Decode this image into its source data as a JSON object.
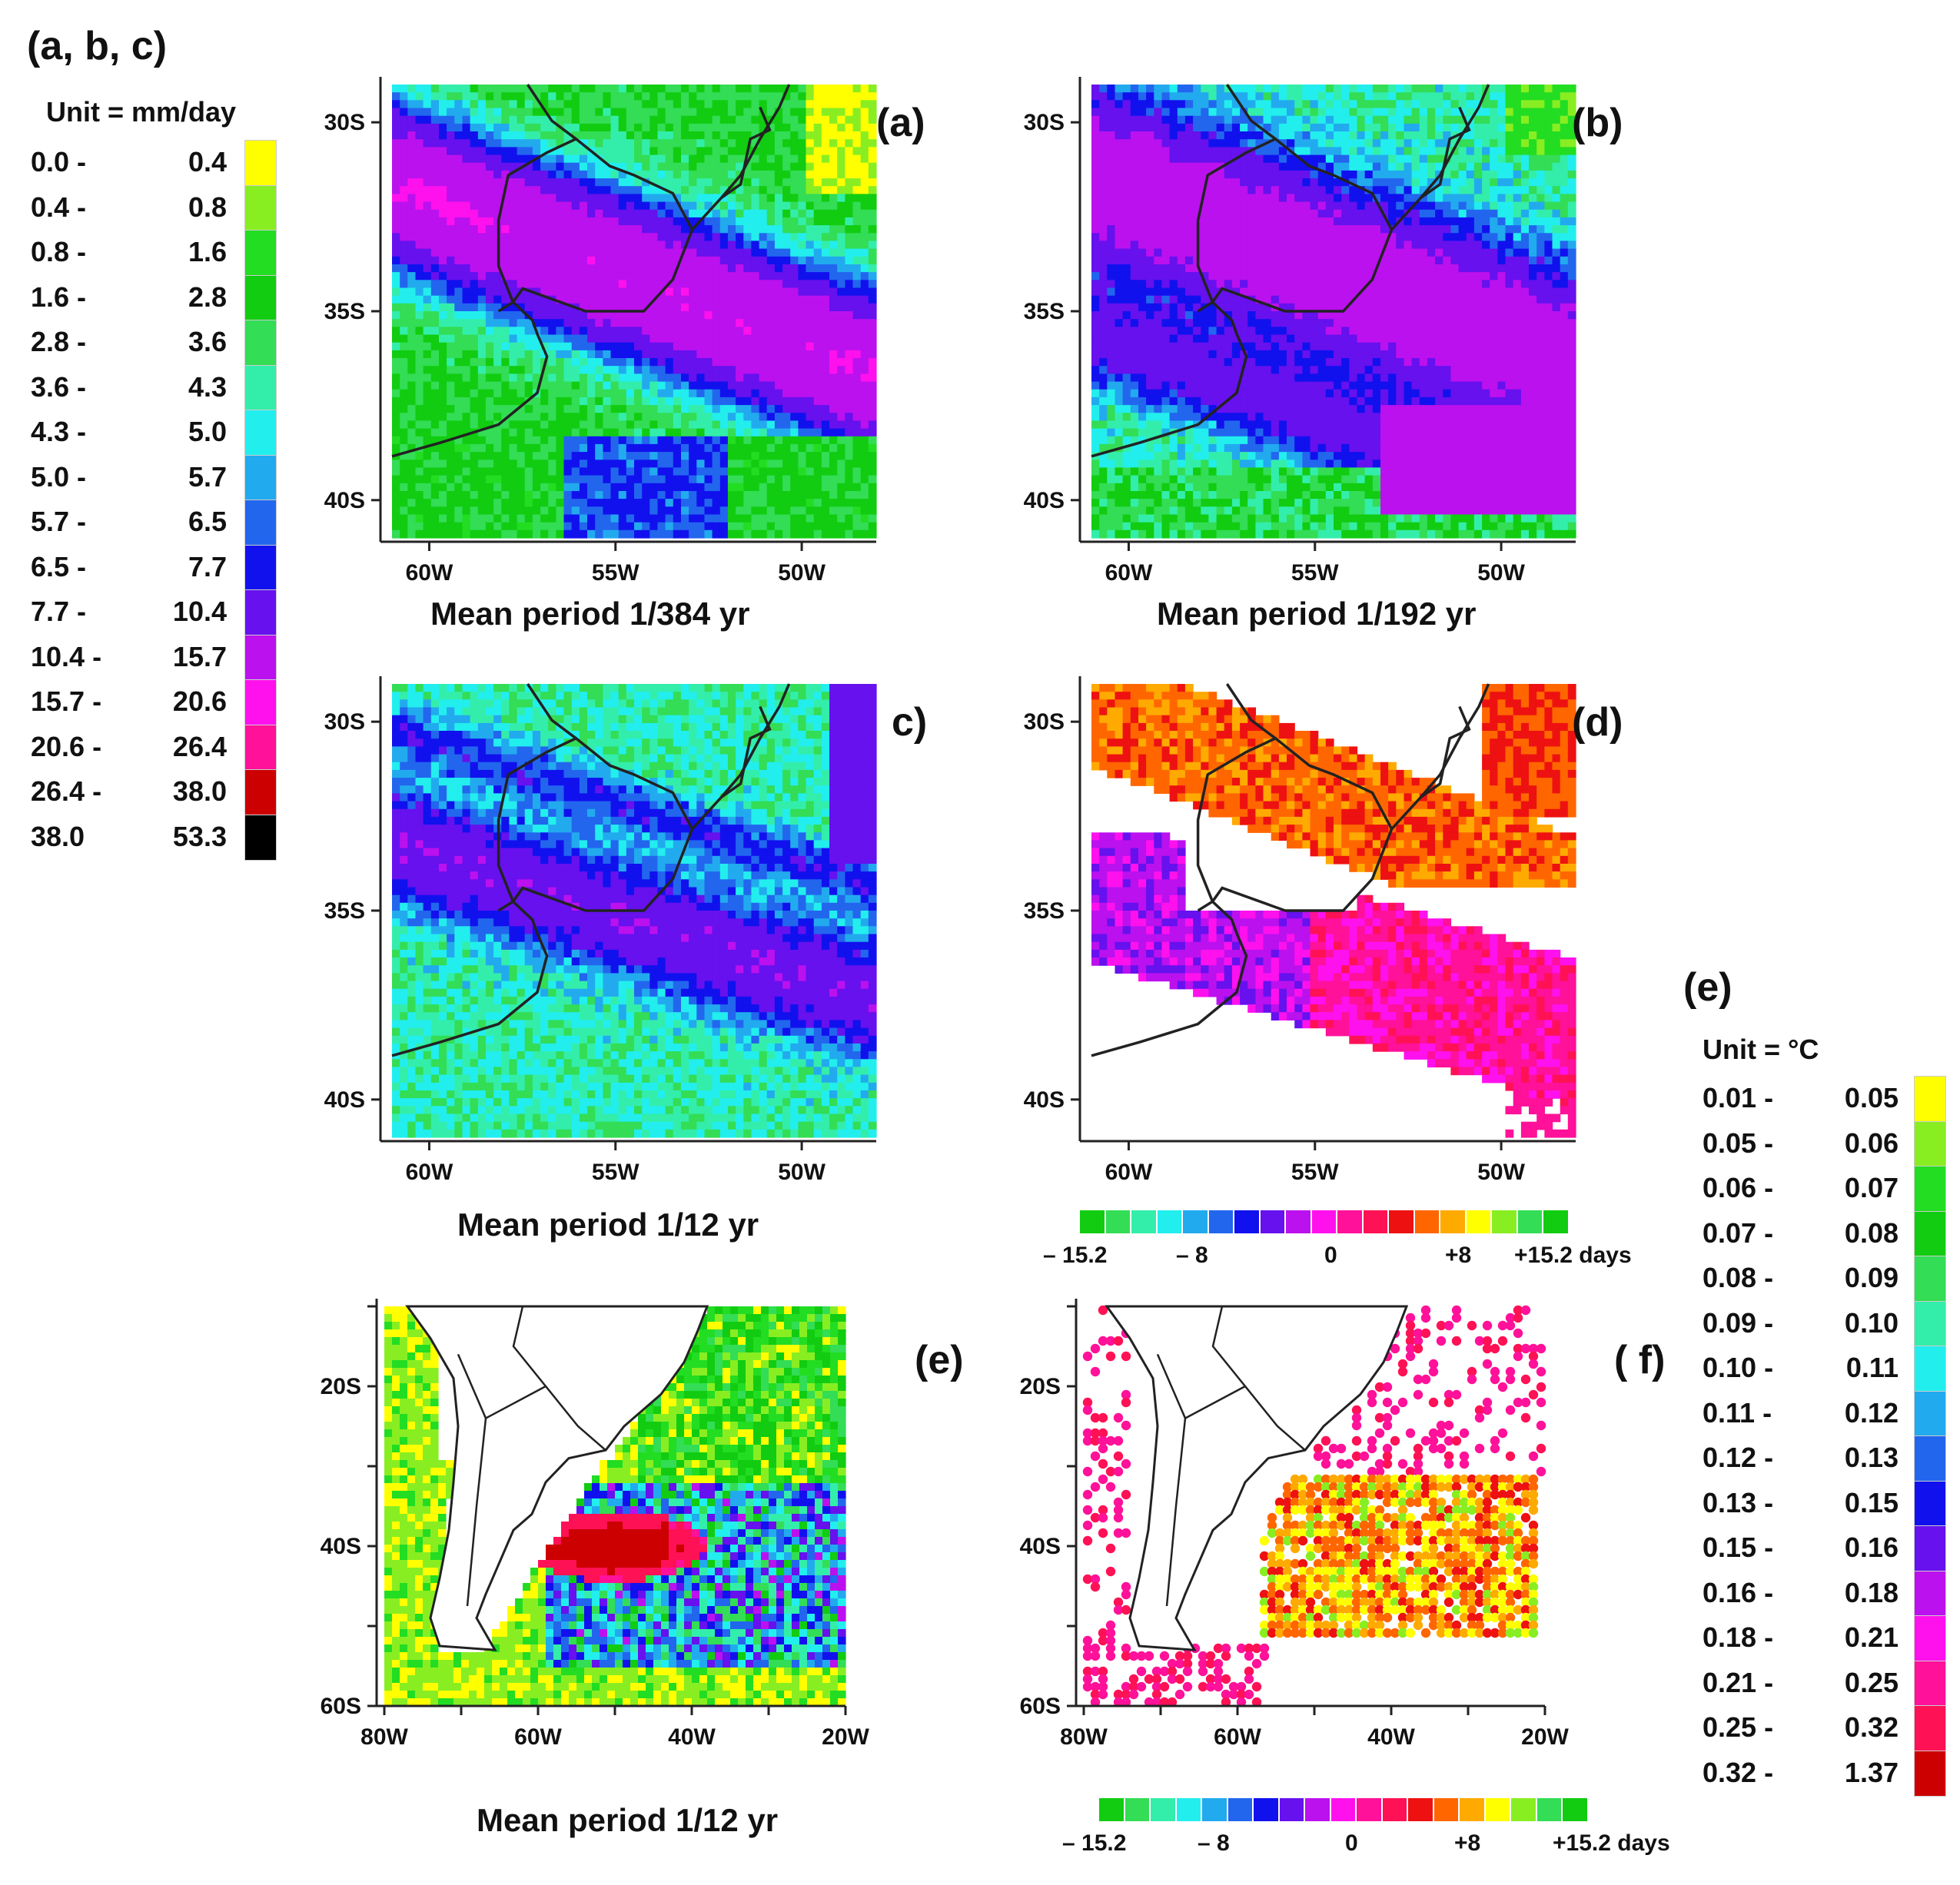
{
  "legend_abc": {
    "title": "(a, b, c)",
    "unit": "Unit = mm/day",
    "rows": [
      {
        "lo": "0.0 -",
        "hi": "0.4",
        "color": "#ffff00"
      },
      {
        "lo": "0.4 -",
        "hi": "0.8",
        "color": "#88ee22"
      },
      {
        "lo": "0.8 -",
        "hi": "1.6",
        "color": "#22dd22"
      },
      {
        "lo": "1.6 -",
        "hi": "2.8",
        "color": "#11cc11"
      },
      {
        "lo": "2.8 -",
        "hi": "3.6",
        "color": "#33dd55"
      },
      {
        "lo": "3.6 -",
        "hi": "4.3",
        "color": "#33eeaa"
      },
      {
        "lo": "4.3 -",
        "hi": "5.0",
        "color": "#22eeee"
      },
      {
        "lo": "5.0 -",
        "hi": "5.7",
        "color": "#22aaee"
      },
      {
        "lo": "5.7 -",
        "hi": "6.5",
        "color": "#2266ee"
      },
      {
        "lo": "6.5 -",
        "hi": "7.7",
        "color": "#1111ee"
      },
      {
        "lo": "7.7 -",
        "hi": "10.4",
        "color": "#6611ee"
      },
      {
        "lo": "10.4 -",
        "hi": "15.7",
        "color": "#bb11ee"
      },
      {
        "lo": "15.7 -",
        "hi": "20.6",
        "color": "#ff11ee"
      },
      {
        "lo": "20.6 -",
        "hi": "26.4",
        "color": "#ff1199"
      },
      {
        "lo": "26.4 -",
        "hi": "38.0",
        "color": "#cc0000"
      },
      {
        "lo": "38.0",
        "hi": "53.3",
        "color": "#000000"
      }
    ]
  },
  "legend_e": {
    "title": "(e)",
    "unit": "Unit = °C",
    "rows": [
      {
        "lo": "0.01 -",
        "hi": "0.05",
        "color": "#ffff00"
      },
      {
        "lo": "0.05 -",
        "hi": "0.06",
        "color": "#88ee22"
      },
      {
        "lo": "0.06 -",
        "hi": "0.07",
        "color": "#22dd22"
      },
      {
        "lo": "0.07 -",
        "hi": "0.08",
        "color": "#11cc11"
      },
      {
        "lo": "0.08 -",
        "hi": "0.09",
        "color": "#33dd55"
      },
      {
        "lo": "0.09 -",
        "hi": "0.10",
        "color": "#33eeaa"
      },
      {
        "lo": "0.10 -",
        "hi": "0.11",
        "color": "#22eeee"
      },
      {
        "lo": "0.11 -",
        "hi": "0.12",
        "color": "#22aaee"
      },
      {
        "lo": "0.12 -",
        "hi": "0.13",
        "color": "#2266ee"
      },
      {
        "lo": "0.13 -",
        "hi": "0.15",
        "color": "#1111ee"
      },
      {
        "lo": "0.15 -",
        "hi": "0.16",
        "color": "#6611ee"
      },
      {
        "lo": "0.16 -",
        "hi": "0.18",
        "color": "#bb11ee"
      },
      {
        "lo": "0.18 -",
        "hi": "0.21",
        "color": "#ff11ee"
      },
      {
        "lo": "0.21 -",
        "hi": "0.25",
        "color": "#ff1199"
      },
      {
        "lo": "0.25 -",
        "hi": "0.32",
        "color": "#ff1155"
      },
      {
        "lo": "0.32 -",
        "hi": "1.37",
        "color": "#cc0000"
      }
    ]
  },
  "phase_colorbar": {
    "colors": [
      "#11cc11",
      "#33dd55",
      "#33eeaa",
      "#22eeee",
      "#22aaee",
      "#2266ee",
      "#1111ee",
      "#6611ee",
      "#bb11ee",
      "#ff11ee",
      "#ff1199",
      "#ff1155",
      "#ee1111",
      "#ff6600",
      "#ffaa00",
      "#ffff00",
      "#88ee22",
      "#33dd55",
      "#11cc11"
    ],
    "labels": [
      "– 15.2",
      "– 8",
      "0",
      "+8",
      "+15.2 days"
    ]
  },
  "chart_data": [
    {
      "id": "a",
      "type": "heatmap",
      "label": "(a)",
      "title": "Mean period    1/384 yr",
      "xticks": [
        "60W",
        "55W",
        "50W"
      ],
      "yticks": [
        "30S",
        "35S",
        "40S"
      ],
      "xlim": [
        -61,
        -48
      ],
      "ylim": [
        -41,
        -29
      ]
    },
    {
      "id": "b",
      "type": "heatmap",
      "label": "(b)",
      "title": "Mean period   1/192 yr",
      "xticks": [
        "60W",
        "55W",
        "50W"
      ],
      "yticks": [
        "30S",
        "35S",
        "40S"
      ],
      "xlim": [
        -61,
        -48
      ],
      "ylim": [
        -41,
        -29
      ]
    },
    {
      "id": "c",
      "type": "heatmap",
      "label": "c)",
      "title": "Mean period  1/12 yr",
      "xticks": [
        "60W",
        "55W",
        "50W"
      ],
      "yticks": [
        "30S",
        "35S",
        "40S"
      ],
      "xlim": [
        -61,
        -48
      ],
      "ylim": [
        -41,
        -29
      ]
    },
    {
      "id": "d",
      "type": "heatmap",
      "label": "(d)",
      "title": "",
      "xticks": [
        "60W",
        "55W",
        "50W"
      ],
      "yticks": [
        "30S",
        "35S",
        "40S"
      ],
      "xlim": [
        -61,
        -48
      ],
      "ylim": [
        -41,
        -29
      ]
    },
    {
      "id": "e",
      "type": "heatmap",
      "label": "(e)",
      "title": "Mean period  1/12 yr",
      "xticks": [
        "80W",
        "60W",
        "40W",
        "20W"
      ],
      "yticks": [
        "20S",
        "40S",
        "60S"
      ],
      "xlim": [
        -80,
        -20
      ],
      "ylim": [
        -60,
        -10
      ]
    },
    {
      "id": "f",
      "type": "heatmap",
      "label": "( f)",
      "title": "",
      "xticks": [
        "80W",
        "60W",
        "40W",
        "20W"
      ],
      "yticks": [
        "20S",
        "40S",
        "60S"
      ],
      "xlim": [
        -80,
        -20
      ],
      "ylim": [
        -60,
        -10
      ]
    }
  ]
}
